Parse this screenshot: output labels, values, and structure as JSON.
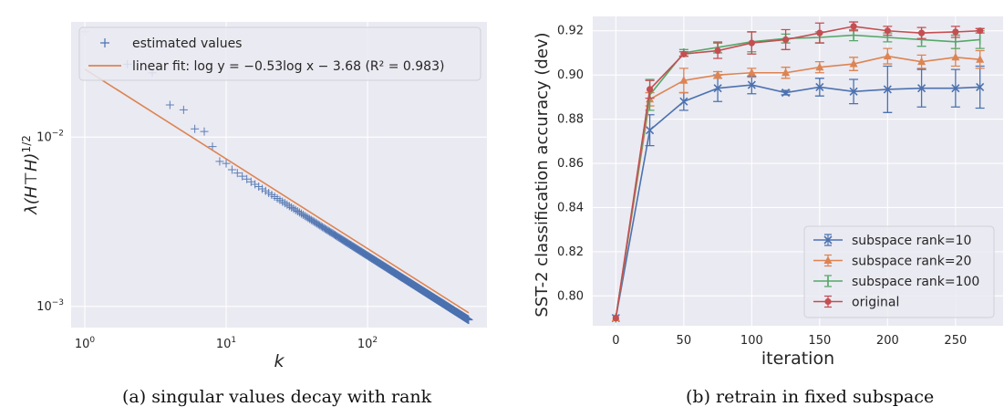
{
  "chart_data": [
    {
      "type": "scatter",
      "caption": "(a) singular values decay with rank",
      "xlabel": "k",
      "ylabel": "λ(H⊤H)^1/2",
      "xscale": "log",
      "yscale": "log",
      "xlim": [
        0.8,
        700
      ],
      "ylim": [
        0.00075,
        0.048
      ],
      "x_ticks": [
        {
          "value": 1,
          "base": "10",
          "exp": "0"
        },
        {
          "value": 10,
          "base": "10",
          "exp": "1"
        },
        {
          "value": 100,
          "base": "10",
          "exp": "2"
        }
      ],
      "y_ticks": [
        {
          "value": 0.001,
          "base": "10",
          "exp": "−3"
        },
        {
          "value": 0.01,
          "base": "10",
          "exp": "−2"
        }
      ],
      "grid": true,
      "legend_position": "top-left",
      "series": [
        {
          "name": "estimated values",
          "marker": "+",
          "color": "#4c72b0",
          "rank_range": [
            1,
            520
          ],
          "leading_values": [
            0.042,
            0.027,
            0.024,
            0.0155,
            0.0145,
            0.0112,
            0.0108,
            0.0088,
            0.0072,
            0.007
          ],
          "power_law_tail": {
            "from_rank": 11,
            "exponent": -0.53,
            "log10_intercept": -1.64
          }
        },
        {
          "name": "linear fit: log y = −0.53log x − 3.68 (R² = 0.983)",
          "line": true,
          "color": "#dd8452",
          "slope": -0.53,
          "ln_intercept": -3.68,
          "r2": 0.983
        }
      ]
    },
    {
      "type": "line",
      "caption": "(b) retrain in fixed subspace",
      "xlabel": "iteration",
      "ylabel": "SST-2 classification accuracy (dev)",
      "xlim": [
        -17,
        285
      ],
      "ylim": [
        0.7865,
        0.9265
      ],
      "x_ticks": [
        0,
        50,
        100,
        150,
        200,
        250
      ],
      "y_ticks": [
        "0.80",
        "0.82",
        "0.84",
        "0.86",
        "0.88",
        "0.90",
        "0.92"
      ],
      "grid": true,
      "legend_position": "bottom-right",
      "x": [
        0,
        25,
        50,
        75,
        100,
        125,
        150,
        175,
        200,
        225,
        250,
        268
      ],
      "series": [
        {
          "name": "subspace rank=10",
          "color": "#4c72b0",
          "marker": "x",
          "values": [
            0.79,
            0.875,
            0.888,
            0.894,
            0.8955,
            0.892,
            0.8945,
            0.8925,
            0.8935,
            0.894,
            0.894,
            0.8945
          ],
          "errors": [
            0.0,
            0.007,
            0.004,
            0.006,
            0.004,
            0.001,
            0.004,
            0.0055,
            0.0105,
            0.0085,
            0.0085,
            0.0095
          ]
        },
        {
          "name": "subspace rank=20",
          "color": "#dd8452",
          "marker": "^",
          "values": [
            0.79,
            0.889,
            0.8975,
            0.9,
            0.901,
            0.901,
            0.9035,
            0.905,
            0.9085,
            0.906,
            0.908,
            0.907
          ],
          "errors": [
            0.0,
            0.003,
            0.0055,
            0.0015,
            0.002,
            0.0025,
            0.0025,
            0.003,
            0.0035,
            0.003,
            0.004,
            0.004
          ]
        },
        {
          "name": "subspace rank=100",
          "color": "#55a868",
          "marker": "|",
          "values": [
            0.79,
            0.891,
            0.91,
            0.9125,
            0.915,
            0.9165,
            0.917,
            0.918,
            0.917,
            0.916,
            0.915,
            0.916
          ],
          "errors": [
            0.0,
            0.007,
            0.0015,
            0.0025,
            0.0045,
            0.002,
            0.0025,
            0.0025,
            0.002,
            0.003,
            0.003,
            0.004
          ]
        },
        {
          "name": "original",
          "color": "#c44e52",
          "marker": "o",
          "values": [
            0.79,
            0.8935,
            0.9095,
            0.911,
            0.9145,
            0.916,
            0.919,
            0.922,
            0.92,
            0.919,
            0.9195,
            0.92
          ],
          "errors": [
            0.0,
            0.004,
            0.001,
            0.0035,
            0.005,
            0.0045,
            0.0045,
            0.002,
            0.002,
            0.0025,
            0.0025,
            0.001
          ]
        }
      ]
    }
  ]
}
